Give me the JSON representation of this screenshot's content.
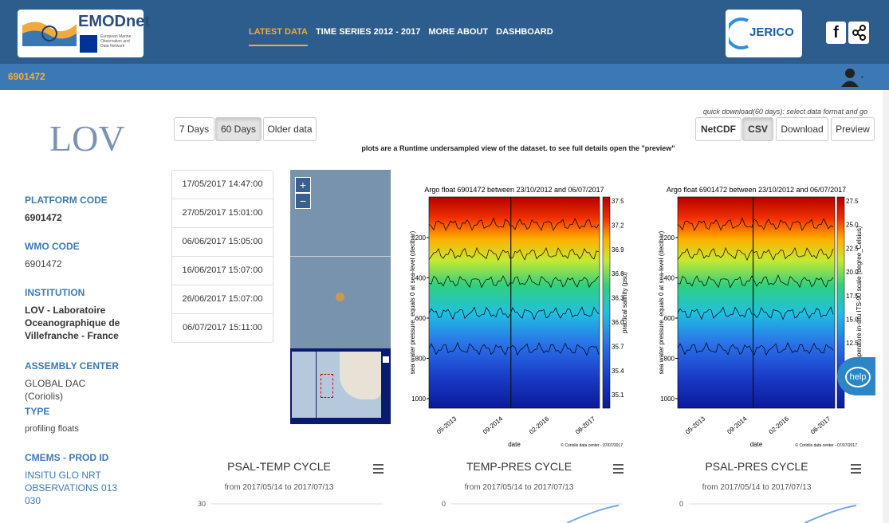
{
  "header": {
    "logo_title": "EMODnet",
    "logo_subtitle": [
      "European Marine",
      "Observation and",
      "Data Network"
    ],
    "nav": [
      "LATEST DATA",
      "TIME SERIES 2012 - 2017",
      "MORE ABOUT",
      "DASHBOARD"
    ],
    "partner_logo": "JERICO",
    "facebook": "f"
  },
  "subheader": {
    "platform": "6901472"
  },
  "sidebar": {
    "logo": "LOV",
    "fields": [
      {
        "label": "PLATFORM CODE",
        "value": "6901472"
      },
      {
        "label": "WMO CODE",
        "value": "6901472"
      },
      {
        "label": "INSTITUTION",
        "value": "LOV - Laboratoire Oceanographique de Villefranche - France"
      },
      {
        "label": "ASSEMBLY CENTER",
        "value": "GLOBAL DAC (Coriolis)"
      },
      {
        "label": "TYPE",
        "value": "profiling floats"
      },
      {
        "label": "CMEMS - PROD ID",
        "value": "INSITU GLO NRT OBSERVATIONS 013 030"
      }
    ]
  },
  "controls": {
    "periods": [
      "7 Days",
      "60 Days",
      "Older data"
    ],
    "quick_download": "quick download(60 days): select data format and go",
    "formats": [
      "NetCDF",
      "CSV"
    ],
    "actions": [
      "Download",
      "Preview"
    ],
    "note": "plots are a Runtime undersampled view of the dataset. to see full details open the \"preview\""
  },
  "dates": [
    "17/05/2017 14:47:00",
    "27/05/2017 15:01:00",
    "06/06/2017 15:05:00",
    "16/06/2017 15:07:00",
    "26/06/2017 15:07:00",
    "06/07/2017 15:11:00"
  ],
  "map": {
    "zoom": [
      "+",
      "−"
    ]
  },
  "plots": [
    {
      "title": "Argo float 6901472 between 23/10/2012 and 06/07/2017",
      "y_label": "sea water pressure, equals 0 at sea-level (decibar)",
      "colorbar_label": "practical salinity (psu)",
      "x_label": "date",
      "credit": "© Coriolis data center - 07/07/2017",
      "yticks": [
        "200",
        "400",
        "600",
        "800",
        "1000"
      ],
      "xticks": [
        "05-2013",
        "09-2014",
        "02-2016",
        "06-2017"
      ],
      "cticks": [
        "37.5",
        "37.2",
        "36.9",
        "36.6",
        "36.3",
        "36.0",
        "35.7",
        "35.4",
        "35.1"
      ]
    },
    {
      "title": "Argo float 6901472 between 23/10/2012 and 06/07/2017",
      "y_label": "sea water pressure, equals 0 at sea-level (decibar)",
      "colorbar_label": "sea temperature in-situ ITS-90 scale (degree_Celsius)",
      "x_label": "date",
      "credit": "© Coriolis data center - 07/07/2017",
      "yticks": [
        "200",
        "400",
        "600",
        "800",
        "1000"
      ],
      "xticks": [
        "05-2013",
        "09-2014",
        "02-2016",
        "06-2017"
      ],
      "cticks": [
        "27.5",
        "25.0",
        "22.5",
        "20.0",
        "17.5",
        "15.0",
        "12.5"
      ]
    }
  ],
  "cycles": [
    {
      "title": "PSAL-TEMP CYCLE",
      "range": "from 2017/05/14 to 2017/07/13",
      "axis_label": "30"
    },
    {
      "title": "TEMP-PRES CYCLE",
      "range": "from 2017/05/14 to 2017/07/13",
      "axis_label": "0"
    },
    {
      "title": "PSAL-PRES CYCLE",
      "range": "from 2017/05/14 to 2017/07/13",
      "axis_label": "0"
    }
  ],
  "help": "help"
}
